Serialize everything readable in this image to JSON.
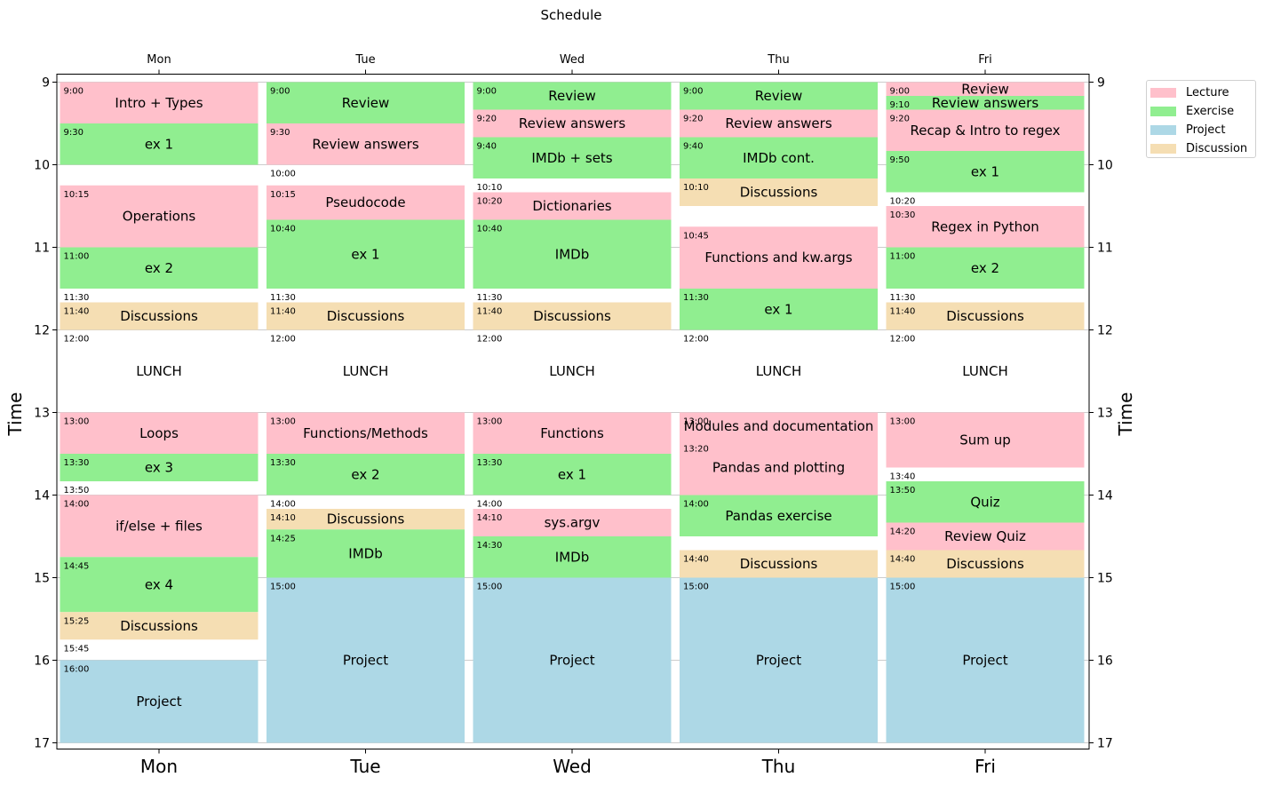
{
  "chart_data": {
    "type": "schedule",
    "title": "Schedule",
    "ylabel": "Time",
    "ylim": [
      9,
      17
    ],
    "yticks": [
      9,
      10,
      11,
      12,
      13,
      14,
      15,
      16,
      17
    ],
    "days": [
      "Mon",
      "Tue",
      "Wed",
      "Thu",
      "Fri"
    ],
    "colors": {
      "Lecture": "#ffc0cb",
      "Exercise": "#90ee90",
      "Project": "#add8e6",
      "Discussion": "#f5deb3"
    },
    "legend": [
      "Lecture",
      "Exercise",
      "Project",
      "Discussion"
    ],
    "lunch_label": "LUNCH",
    "lunch": [
      12,
      13
    ],
    "events": [
      {
        "day": 0,
        "start": "9:00",
        "end": "9:30",
        "label": "Intro + Types",
        "category": "Lecture"
      },
      {
        "day": 0,
        "start": "9:30",
        "end": "10:00",
        "label": "ex 1",
        "category": "Exercise"
      },
      {
        "day": 0,
        "start": "10:15",
        "end": "11:00",
        "label": "Operations",
        "category": "Lecture"
      },
      {
        "day": 0,
        "start": "11:00",
        "end": "11:30",
        "label": "ex 2",
        "category": "Exercise"
      },
      {
        "day": 0,
        "start": "11:40",
        "end": "12:00",
        "label": "Discussions",
        "category": "Discussion"
      },
      {
        "day": 0,
        "start": "13:00",
        "end": "13:30",
        "label": "Loops",
        "category": "Lecture"
      },
      {
        "day": 0,
        "start": "13:30",
        "end": "13:50",
        "label": "ex 3",
        "category": "Exercise"
      },
      {
        "day": 0,
        "start": "14:00",
        "end": "14:45",
        "label": "if/else + files",
        "category": "Lecture"
      },
      {
        "day": 0,
        "start": "14:45",
        "end": "15:25",
        "label": "ex 4",
        "category": "Exercise"
      },
      {
        "day": 0,
        "start": "15:25",
        "end": "15:45",
        "label": "Discussions",
        "category": "Discussion"
      },
      {
        "day": 0,
        "start": "16:00",
        "end": "17:00",
        "label": "Project",
        "category": "Project"
      },
      {
        "day": 1,
        "start": "9:00",
        "end": "9:30",
        "label": "Review",
        "category": "Exercise"
      },
      {
        "day": 1,
        "start": "9:30",
        "end": "10:00",
        "label": "Review answers",
        "category": "Lecture"
      },
      {
        "day": 1,
        "start": "10:15",
        "end": "10:40",
        "label": "Pseudocode",
        "category": "Lecture"
      },
      {
        "day": 1,
        "start": "10:40",
        "end": "11:30",
        "label": "ex 1",
        "category": "Exercise"
      },
      {
        "day": 1,
        "start": "11:40",
        "end": "12:00",
        "label": "Discussions",
        "category": "Discussion"
      },
      {
        "day": 1,
        "start": "13:00",
        "end": "13:30",
        "label": "Functions/Methods",
        "category": "Lecture"
      },
      {
        "day": 1,
        "start": "13:30",
        "end": "14:00",
        "label": "ex 2",
        "category": "Exercise"
      },
      {
        "day": 1,
        "start": "14:10",
        "end": "14:25",
        "label": "Discussions",
        "category": "Discussion"
      },
      {
        "day": 1,
        "start": "14:25",
        "end": "15:00",
        "label": "IMDb",
        "category": "Exercise"
      },
      {
        "day": 1,
        "start": "15:00",
        "end": "17:00",
        "label": "Project",
        "category": "Project"
      },
      {
        "day": 2,
        "start": "9:00",
        "end": "9:20",
        "label": "Review",
        "category": "Exercise"
      },
      {
        "day": 2,
        "start": "9:20",
        "end": "9:40",
        "label": "Review answers",
        "category": "Lecture"
      },
      {
        "day": 2,
        "start": "9:40",
        "end": "10:10",
        "label": "IMDb + sets",
        "category": "Exercise"
      },
      {
        "day": 2,
        "start": "10:20",
        "end": "10:40",
        "label": "Dictionaries",
        "category": "Lecture"
      },
      {
        "day": 2,
        "start": "10:40",
        "end": "11:30",
        "label": "IMDb",
        "category": "Exercise"
      },
      {
        "day": 2,
        "start": "11:40",
        "end": "12:00",
        "label": "Discussions",
        "category": "Discussion"
      },
      {
        "day": 2,
        "start": "13:00",
        "end": "13:30",
        "label": "Functions",
        "category": "Lecture"
      },
      {
        "day": 2,
        "start": "13:30",
        "end": "14:00",
        "label": "ex 1",
        "category": "Exercise"
      },
      {
        "day": 2,
        "start": "14:10",
        "end": "14:30",
        "label": "sys.argv",
        "category": "Lecture"
      },
      {
        "day": 2,
        "start": "14:30",
        "end": "15:00",
        "label": "IMDb",
        "category": "Exercise"
      },
      {
        "day": 2,
        "start": "15:00",
        "end": "17:00",
        "label": "Project",
        "category": "Project"
      },
      {
        "day": 3,
        "start": "9:00",
        "end": "9:20",
        "label": "Review",
        "category": "Exercise"
      },
      {
        "day": 3,
        "start": "9:20",
        "end": "9:40",
        "label": "Review answers",
        "category": "Lecture"
      },
      {
        "day": 3,
        "start": "9:40",
        "end": "10:10",
        "label": "IMDb cont.",
        "category": "Exercise"
      },
      {
        "day": 3,
        "start": "10:10",
        "end": "10:30",
        "label": "Discussions",
        "category": "Discussion"
      },
      {
        "day": 3,
        "start": "10:45",
        "end": "11:30",
        "label": "Functions and kw.args",
        "category": "Lecture"
      },
      {
        "day": 3,
        "start": "11:30",
        "end": "12:00",
        "label": "ex 1",
        "category": "Exercise"
      },
      {
        "day": 3,
        "start": "13:00",
        "end": "13:20",
        "label": "Modules and documentation",
        "category": "Lecture"
      },
      {
        "day": 3,
        "start": "13:20",
        "end": "14:00",
        "label": "Pandas and plotting",
        "category": "Lecture"
      },
      {
        "day": 3,
        "start": "14:00",
        "end": "14:30",
        "label": "Pandas exercise",
        "category": "Exercise"
      },
      {
        "day": 3,
        "start": "14:40",
        "end": "15:00",
        "label": "Discussions",
        "category": "Discussion"
      },
      {
        "day": 3,
        "start": "15:00",
        "end": "17:00",
        "label": "Project",
        "category": "Project"
      },
      {
        "day": 4,
        "start": "9:00",
        "end": "9:10",
        "label": "Review",
        "category": "Lecture"
      },
      {
        "day": 4,
        "start": "9:10",
        "end": "9:20",
        "label": "Review answers",
        "category": "Exercise"
      },
      {
        "day": 4,
        "start": "9:20",
        "end": "9:50",
        "label": "Recap & Intro to regex",
        "category": "Lecture"
      },
      {
        "day": 4,
        "start": "9:50",
        "end": "10:20",
        "label": "ex 1",
        "category": "Exercise"
      },
      {
        "day": 4,
        "start": "10:30",
        "end": "11:00",
        "label": "Regex in Python",
        "category": "Lecture"
      },
      {
        "day": 4,
        "start": "11:00",
        "end": "11:30",
        "label": "ex 2",
        "category": "Exercise"
      },
      {
        "day": 4,
        "start": "11:40",
        "end": "12:00",
        "label": "Discussions",
        "category": "Discussion"
      },
      {
        "day": 4,
        "start": "13:00",
        "end": "13:40",
        "label": "Sum up",
        "category": "Lecture"
      },
      {
        "day": 4,
        "start": "13:50",
        "end": "14:20",
        "label": "Quiz",
        "category": "Exercise"
      },
      {
        "day": 4,
        "start": "14:20",
        "end": "14:40",
        "label": "Review Quiz",
        "category": "Lecture"
      },
      {
        "day": 4,
        "start": "14:40",
        "end": "15:00",
        "label": "Discussions",
        "category": "Discussion"
      },
      {
        "day": 4,
        "start": "15:00",
        "end": "17:00",
        "label": "Project",
        "category": "Project"
      }
    ],
    "end_time_labels": [
      {
        "day": 0,
        "time": "10:00",
        "show": false
      },
      {
        "day": 0,
        "time": "11:30"
      },
      {
        "day": 0,
        "time": "12:00"
      },
      {
        "day": 0,
        "time": "13:50"
      },
      {
        "day": 0,
        "time": "15:45"
      },
      {
        "day": 1,
        "time": "10:00"
      },
      {
        "day": 1,
        "time": "11:30"
      },
      {
        "day": 1,
        "time": "12:00"
      },
      {
        "day": 1,
        "time": "14:00"
      },
      {
        "day": 2,
        "time": "10:10"
      },
      {
        "day": 2,
        "time": "11:30"
      },
      {
        "day": 2,
        "time": "12:00"
      },
      {
        "day": 2,
        "time": "14:00"
      },
      {
        "day": 3,
        "time": "12:00"
      },
      {
        "day": 4,
        "time": "10:20"
      },
      {
        "day": 4,
        "time": "11:30"
      },
      {
        "day": 4,
        "time": "12:00"
      },
      {
        "day": 4,
        "time": "13:40"
      }
    ]
  }
}
